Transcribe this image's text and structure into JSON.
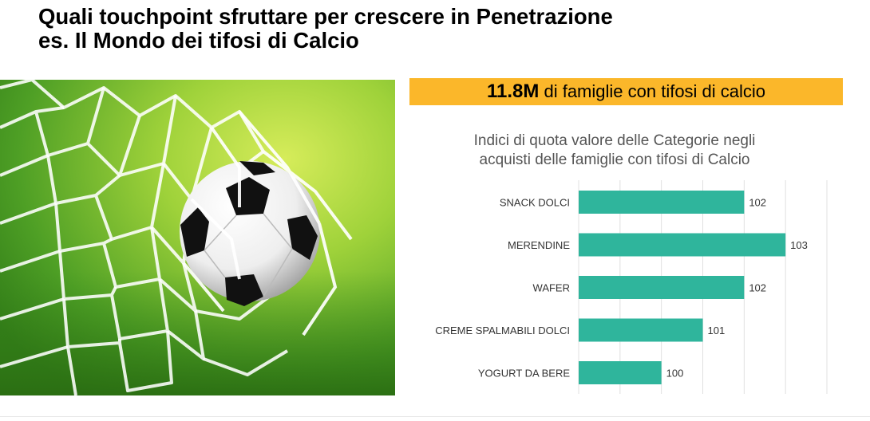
{
  "slide": {
    "title_line1": "Quali touchpoint sfruttare per crescere in Penetrazione",
    "title_line2": "es. Il Mondo dei tifosi di Calcio"
  },
  "banner": {
    "highlight": "11.8M",
    "text": "di famiglie con tifosi di calcio",
    "background": "#fbb72a"
  },
  "photo": {
    "subject": "soccer-ball-in-net"
  },
  "colors": {
    "bar": "#2fb59c",
    "grid": "#e0e0e0",
    "label": "#333333",
    "title_text": "#555555"
  },
  "chart_data": {
    "type": "bar",
    "orientation": "horizontal",
    "title_line1": "Indici di quota valore delle Categorie negli",
    "title_line2": "acquisti delle famiglie con tifosi di Calcio",
    "categories": [
      "SNACK DOLCI",
      "MERENDINE",
      "WAFER",
      "CREME SPALMABILI DOLCI",
      "YOGURT DA BERE"
    ],
    "values": [
      102,
      103,
      102,
      101,
      100
    ],
    "xlim": [
      98,
      104
    ],
    "grid": true,
    "data_labels": true,
    "legend": "none"
  }
}
